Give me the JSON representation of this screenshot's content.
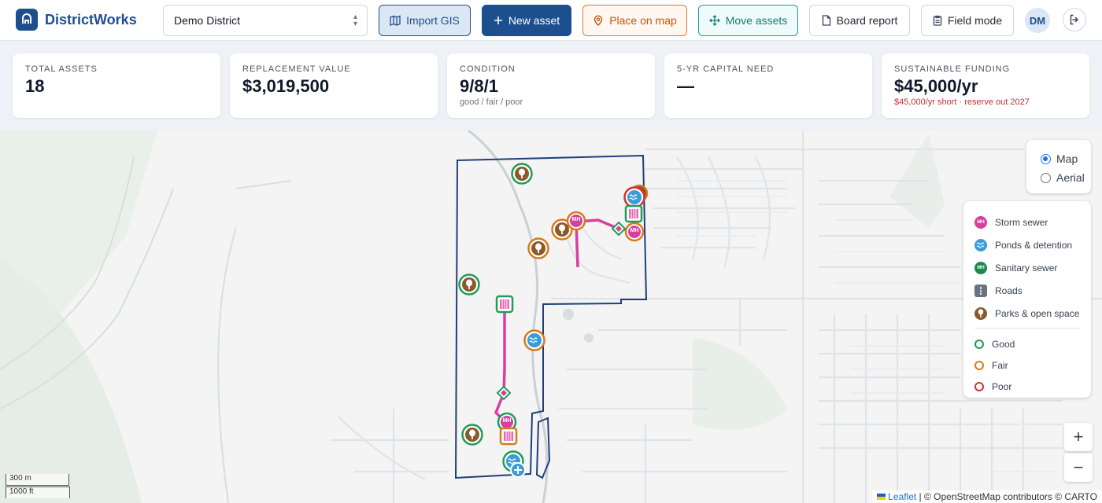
{
  "app": {
    "name": "DistrictWorks"
  },
  "toolbar": {
    "district": "Demo District",
    "import_gis": "Import GIS",
    "new_asset": "New asset",
    "place_on_map": "Place on map",
    "move_assets": "Move assets",
    "board_report": "Board report",
    "field_mode": "Field mode",
    "avatar_initials": "DM"
  },
  "kpis": {
    "total_assets": {
      "label": "TOTAL ASSETS",
      "value": "18"
    },
    "replacement_value": {
      "label": "REPLACEMENT VALUE",
      "value": "$3,019,500"
    },
    "condition": {
      "label": "CONDITION",
      "value": "9/8/1",
      "sub": "good / fair / poor"
    },
    "capital_need": {
      "label": "5-YR CAPITAL NEED",
      "value": "—"
    },
    "funding": {
      "label": "SUSTAINABLE FUNDING",
      "value": "$45,000/yr",
      "sub": "$45,000/yr short · reserve out 2027"
    }
  },
  "map": {
    "layers": {
      "map": "Map",
      "aerial": "Aerial",
      "selected": "map"
    },
    "legend": {
      "types": [
        {
          "label": "Storm sewer",
          "icon": "storm-sewer-icon",
          "color": "#d6409f"
        },
        {
          "label": "Ponds & detention",
          "icon": "pond-icon",
          "color": "#3b9bd9"
        },
        {
          "label": "Sanitary sewer",
          "icon": "sanitary-sewer-icon",
          "color": "#1b8a4b"
        },
        {
          "label": "Roads",
          "icon": "road-icon",
          "color": "#6b7280"
        },
        {
          "label": "Parks & open space",
          "icon": "park-icon",
          "color": "#8a5a2b"
        }
      ],
      "conditions": [
        {
          "label": "Good",
          "color": "#1f9d55"
        },
        {
          "label": "Fair",
          "color": "#d97a1a"
        },
        {
          "label": "Poor",
          "color": "#d63031"
        }
      ]
    },
    "marker_labels": {
      "manhole": "MH"
    },
    "zoom_in": "+",
    "zoom_out": "−",
    "scale_metric": "300 m",
    "scale_imperial": "1000 ft",
    "attribution_link": "Leaflet",
    "attribution_text": "| © OpenStreetMap contributors © CARTO"
  }
}
